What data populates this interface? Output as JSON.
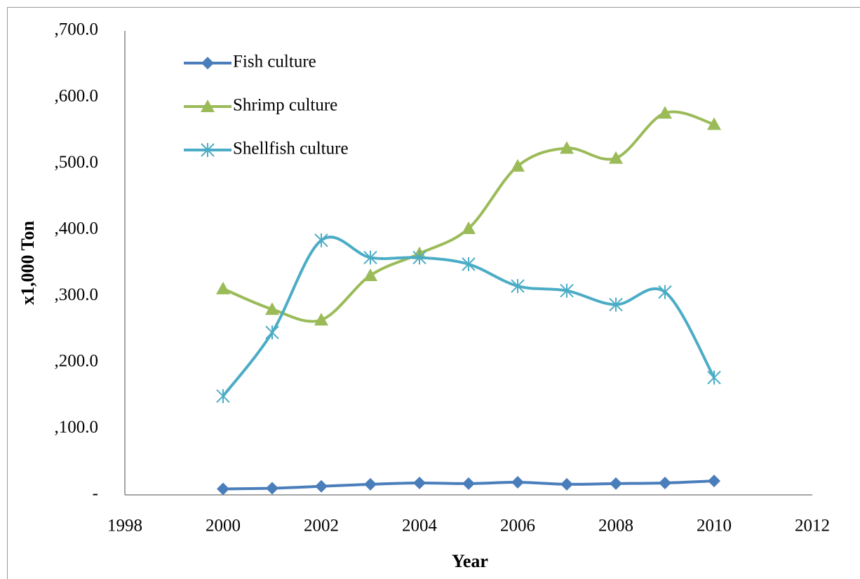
{
  "chart_data": {
    "type": "line",
    "smooth": true,
    "x_label": "Year",
    "y_label": "x1,000 Ton",
    "x": [
      2000,
      2001,
      2002,
      2003,
      2004,
      2005,
      2006,
      2007,
      2008,
      2009,
      2010
    ],
    "series": [
      {
        "name": "Fish culture",
        "color": "#4a7ebb",
        "marker": "diamond",
        "values": [
          9,
          10,
          13,
          16,
          18,
          17,
          19,
          16,
          17,
          18,
          21
        ]
      },
      {
        "name": "Shrimp culture",
        "color": "#9bbb59",
        "marker": "triangle",
        "values": [
          311,
          280,
          264,
          331,
          364,
          402,
          496,
          523,
          508,
          576,
          559
        ]
      },
      {
        "name": "Shellfish culture",
        "color": "#4bacc6",
        "marker": "asterisk",
        "values": [
          149,
          245,
          384,
          358,
          358,
          348,
          315,
          308,
          287,
          306,
          177
        ]
      }
    ],
    "xlim": [
      1998,
      2012
    ],
    "xticks": [
      1998,
      2000,
      2002,
      2004,
      2006,
      2008,
      2010,
      2012
    ],
    "ylim": [
      0,
      700
    ],
    "yticks": [
      {
        "value": 0,
        "label": "-"
      },
      {
        "value": 100,
        "label": ",100.0"
      },
      {
        "value": 200,
        "label": ",200.0"
      },
      {
        "value": 300,
        "label": ",300.0"
      },
      {
        "value": 400,
        "label": ",400.0"
      },
      {
        "value": 500,
        "label": ",500.0"
      },
      {
        "value": 600,
        "label": ",600.0"
      },
      {
        "value": 700,
        "label": ",700.0"
      }
    ],
    "grid": false,
    "legend": "upper left"
  }
}
